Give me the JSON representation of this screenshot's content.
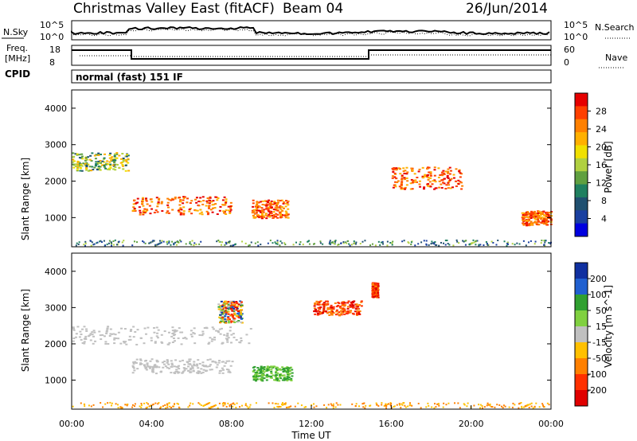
{
  "title": {
    "left": "Christmas Valley East (fitACF)",
    "center": "Beam 04",
    "right": "26/Jun/2014"
  },
  "noise_panel": {
    "left_label": "N.Sky",
    "left_ticks": [
      "10^5",
      "10^0"
    ],
    "right_ticks": [
      "10^5",
      "10^0"
    ],
    "right_label": "N.Search"
  },
  "freq_panel": {
    "left_label_1": "Freq.",
    "left_label_2": "[MHz]",
    "left_ticks": [
      "18",
      "8"
    ],
    "right_ticks": [
      "60",
      "0"
    ],
    "right_label": "Nave"
  },
  "cpid": {
    "label": "CPID",
    "value": "normal (fast) 151 IF"
  },
  "chart_data": [
    {
      "type": "heatmap",
      "name": "power",
      "xlabel": "",
      "ylabel": "Slant Range [km]",
      "xlim": [
        "00:00",
        "24:00"
      ],
      "ylim": [
        200,
        4500
      ],
      "y_ticks": [
        1000,
        2000,
        3000,
        4000
      ],
      "colorbar": {
        "label": "Power [dB]",
        "ticks": [
          "28",
          "24",
          "20",
          "16",
          "12",
          "8",
          "4"
        ],
        "colors": [
          "#e60000",
          "#ff4000",
          "#ff8000",
          "#ffb000",
          "#f0e000",
          "#b0d040",
          "#60a040",
          "#208060",
          "#205070",
          "#1a40a0",
          "#0000e0"
        ]
      },
      "regions": [
        {
          "t0": 0.0,
          "t1": 2.8,
          "r0": 2300,
          "r1": 2800,
          "level": "mid"
        },
        {
          "t0": 3.0,
          "t1": 8.0,
          "r0": 1100,
          "r1": 1600,
          "level": "high"
        },
        {
          "t0": 9.0,
          "t1": 10.8,
          "r0": 1000,
          "r1": 1500,
          "level": "high"
        },
        {
          "t0": 16.0,
          "t1": 19.5,
          "r0": 1800,
          "r1": 2400,
          "level": "high"
        },
        {
          "t0": 22.5,
          "t1": 24.0,
          "r0": 800,
          "r1": 1200,
          "level": "high"
        }
      ]
    },
    {
      "type": "heatmap",
      "name": "velocity",
      "xlabel": "Time UT",
      "ylabel": "Slant Range [km]",
      "x_ticks": [
        "00:00",
        "04:00",
        "08:00",
        "12:00",
        "16:00",
        "20:00",
        "00:00"
      ],
      "ylim": [
        200,
        4500
      ],
      "y_ticks": [
        1000,
        2000,
        3000,
        4000
      ],
      "colorbar": {
        "label": "Velocity [m s^-1]",
        "ticks": [
          "200",
          "100",
          "50",
          "15",
          "-15",
          "-50",
          "-100",
          "-200"
        ],
        "colors": [
          "#1030a0",
          "#2060d0",
          "#30a030",
          "#80d040",
          "#c0c0c0",
          "#ffc000",
          "#ff8000",
          "#ff3000",
          "#e00000"
        ]
      },
      "regions": [
        {
          "t0": 0.0,
          "t1": 9.0,
          "r0": 2000,
          "r1": 2500,
          "level": "ground"
        },
        {
          "t0": 3.0,
          "t1": 8.0,
          "r0": 1200,
          "r1": 1600,
          "level": "ground"
        },
        {
          "t0": 9.0,
          "t1": 11.0,
          "r0": 1000,
          "r1": 1400,
          "level": "positive"
        },
        {
          "t0": 12.0,
          "t1": 14.5,
          "r0": 2800,
          "r1": 3200,
          "level": "negative"
        },
        {
          "t0": 15.0,
          "t1": 15.3,
          "r0": 3300,
          "r1": 3700,
          "level": "negative"
        },
        {
          "t0": 7.3,
          "t1": 8.5,
          "r0": 2600,
          "r1": 3200,
          "level": "mixed"
        }
      ]
    }
  ]
}
